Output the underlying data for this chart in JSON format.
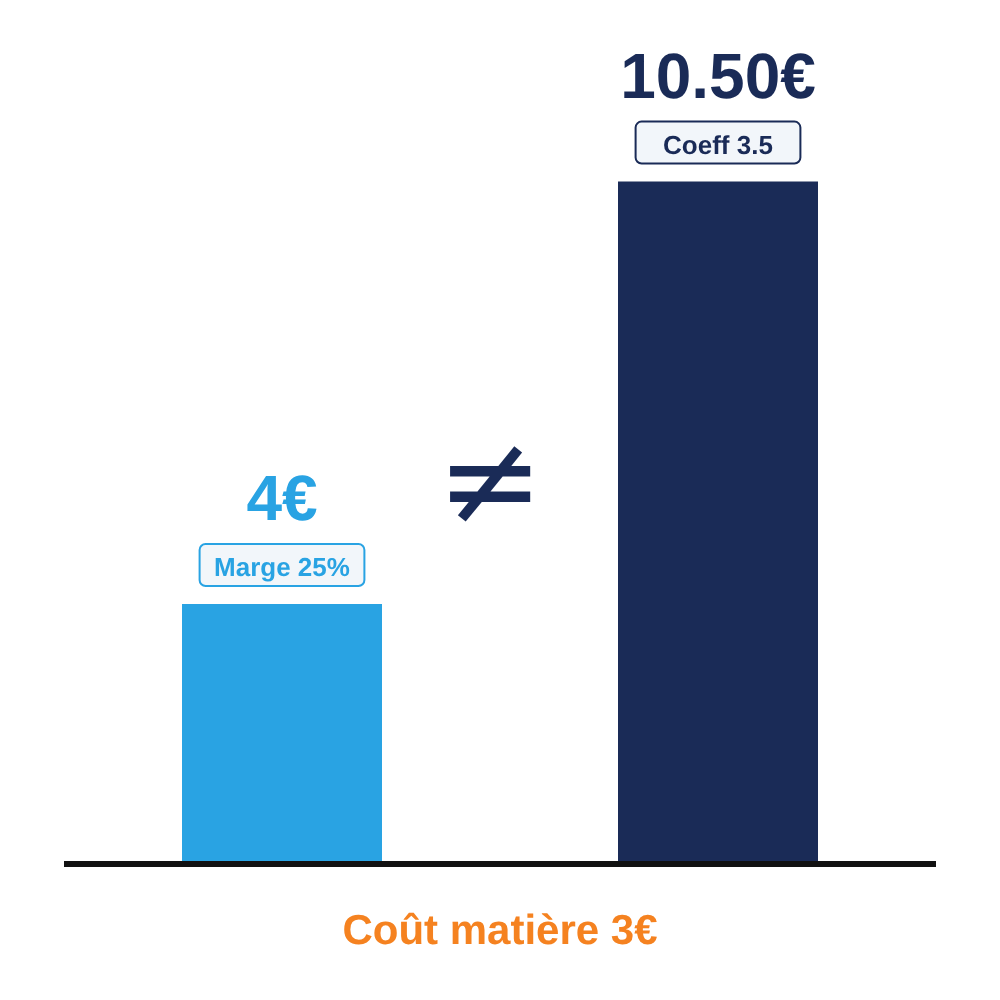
{
  "chart_data": {
    "type": "bar",
    "categories": [
      null,
      null
    ],
    "values": [
      4,
      10.5
    ],
    "colors": [
      "#29a3e3",
      "#1a2b57"
    ],
    "value_labels": [
      "4€",
      "10.50€"
    ],
    "xlabel": "Coût matière 3€",
    "annotations": [
      "Marge 25%",
      "Coeff 3.5",
      "≠"
    ],
    "grid": false,
    "legend": false
  }
}
